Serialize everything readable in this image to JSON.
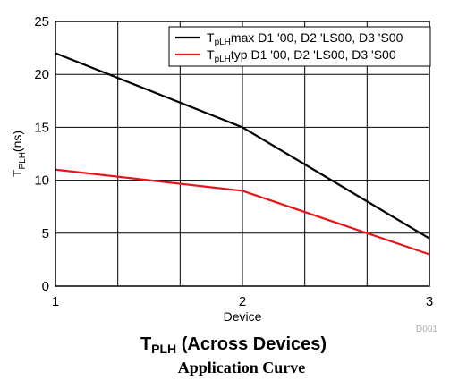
{
  "chart_data": {
    "type": "line",
    "x": [
      1,
      2,
      3
    ],
    "x_tick_labels": [
      "1",
      "2",
      "3"
    ],
    "xlabel": "Device",
    "ylabel": {
      "main": "T",
      "sub": "PLH",
      "tail": "(ns)"
    },
    "xlim": [
      1,
      3
    ],
    "ylim": [
      0,
      25
    ],
    "y_ticks": [
      0,
      5,
      10,
      15,
      20,
      25
    ],
    "grid": true,
    "legend_position": "top-right",
    "series": [
      {
        "name": {
          "main": "T",
          "sub": "pLH",
          "tail": "max D1 '00, D2 'LS00, D3 'S00"
        },
        "color": "#000000",
        "values": [
          22,
          15,
          4.5
        ]
      },
      {
        "name": {
          "main": "T",
          "sub": "pLH",
          "tail": "typ D1 '00, D2 'LS00, D3 'S00"
        },
        "color": "#e8141c",
        "values": [
          11,
          9,
          3
        ]
      }
    ]
  },
  "figure_id": "D001",
  "caption": {
    "title": {
      "main": "T",
      "sub": "PLH",
      "tail": " (Across Devices)"
    },
    "subtitle": "Application Curve"
  }
}
